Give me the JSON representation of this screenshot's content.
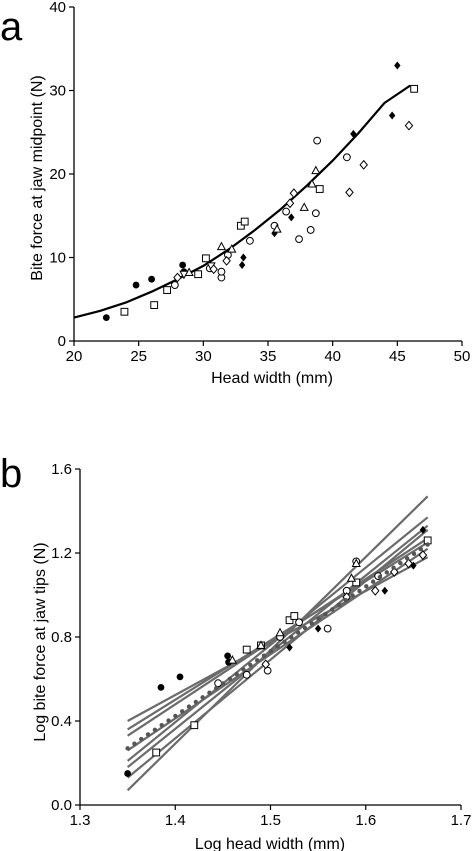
{
  "panels": [
    {
      "letter": "a"
    },
    {
      "letter": "b"
    }
  ],
  "chart_data": [
    {
      "type": "scatter",
      "panel": "a",
      "xlabel": "Head width (mm)",
      "ylabel": "Bite force at jaw midpoint (N)",
      "xlim": [
        20,
        50
      ],
      "ylim": [
        0,
        40
      ],
      "xticks": [
        20,
        25,
        30,
        35,
        40,
        45,
        50
      ],
      "yticks": [
        0,
        10,
        20,
        30,
        40
      ],
      "grid": false,
      "fit_curve": {
        "style": "solid",
        "color": "#000000",
        "x": [
          20,
          22,
          24,
          26,
          28,
          30,
          32,
          34,
          36,
          38,
          40,
          42,
          44,
          46
        ],
        "y": [
          2.8,
          3.6,
          4.6,
          5.9,
          7.4,
          9.0,
          11.0,
          13.3,
          15.8,
          18.6,
          21.6,
          24.9,
          28.5,
          30.6
        ]
      },
      "series": [
        {
          "marker": "filled-circle",
          "points": [
            [
              22.5,
              2.8
            ],
            [
              24.8,
              6.7
            ],
            [
              26.0,
              7.4
            ],
            [
              28.4,
              9.1
            ],
            [
              28.5,
              8.3
            ]
          ]
        },
        {
          "marker": "filled-diamond",
          "points": [
            [
              33.1,
              10.0
            ],
            [
              33.0,
              9.1
            ],
            [
              35.5,
              12.9
            ],
            [
              36.8,
              14.8
            ],
            [
              41.6,
              24.8
            ],
            [
              44.6,
              27.0
            ],
            [
              45.0,
              33.0
            ]
          ]
        },
        {
          "marker": "open-square",
          "points": [
            [
              23.9,
              3.5
            ],
            [
              26.2,
              4.3
            ],
            [
              27.2,
              6.1
            ],
            [
              29.6,
              8.0
            ],
            [
              30.2,
              9.9
            ],
            [
              32.9,
              13.8
            ],
            [
              33.2,
              14.3
            ],
            [
              39.0,
              18.2
            ],
            [
              46.3,
              30.2
            ]
          ]
        },
        {
          "marker": "open-circle",
          "points": [
            [
              27.8,
              6.7
            ],
            [
              30.5,
              8.7
            ],
            [
              31.4,
              7.6
            ],
            [
              31.4,
              8.3
            ],
            [
              31.9,
              10.3
            ],
            [
              33.6,
              12.0
            ],
            [
              35.5,
              13.8
            ],
            [
              36.4,
              15.5
            ],
            [
              37.4,
              12.2
            ],
            [
              38.3,
              13.3
            ],
            [
              38.7,
              15.3
            ],
            [
              38.8,
              24.0
            ],
            [
              41.1,
              22.0
            ]
          ]
        },
        {
          "marker": "open-triangle",
          "points": [
            [
              28.9,
              8.2
            ],
            [
              31.4,
              11.3
            ],
            [
              32.2,
              11.0
            ],
            [
              35.7,
              13.4
            ],
            [
              37.8,
              16.0
            ],
            [
              38.4,
              18.8
            ],
            [
              38.7,
              20.4
            ]
          ]
        },
        {
          "marker": "open-triangle-down",
          "points": [
            [
              28.5,
              8.0
            ],
            [
              30.6,
              9.0
            ]
          ]
        },
        {
          "marker": "open-diamond",
          "points": [
            [
              28.0,
              7.6
            ],
            [
              30.8,
              8.6
            ],
            [
              31.8,
              9.6
            ],
            [
              36.7,
              16.5
            ],
            [
              37.0,
              17.7
            ],
            [
              41.3,
              17.8
            ],
            [
              42.4,
              21.1
            ],
            [
              45.9,
              25.8
            ]
          ]
        }
      ]
    },
    {
      "type": "scatter",
      "panel": "b",
      "xlabel": "Log head width (mm)",
      "ylabel": "Log bite force at jaw tips (N)",
      "xlim": [
        1.3,
        1.7
      ],
      "ylim": [
        0,
        1.6
      ],
      "xticks": [
        1.3,
        1.4,
        1.5,
        1.6,
        1.7
      ],
      "yticks": [
        0,
        0.4,
        0.8,
        1.2,
        1.6
      ],
      "grid": false,
      "regression_lines": [
        {
          "color": "#6b6b6b",
          "x": [
            1.35,
            1.665
          ],
          "y": [
            0.07,
            1.47
          ]
        },
        {
          "color": "#6b6b6b",
          "x": [
            1.35,
            1.665
          ],
          "y": [
            0.21,
            1.37
          ]
        },
        {
          "color": "#6b6b6b",
          "x": [
            1.35,
            1.665
          ],
          "y": [
            0.18,
            1.33
          ]
        },
        {
          "color": "#6b6b6b",
          "x": [
            1.35,
            1.665
          ],
          "y": [
            0.26,
            1.22
          ]
        },
        {
          "color": "#6b6b6b",
          "x": [
            1.35,
            1.665
          ],
          "y": [
            0.33,
            1.27
          ]
        },
        {
          "color": "#6b6b6b",
          "x": [
            1.35,
            1.665
          ],
          "y": [
            0.4,
            1.18
          ]
        },
        {
          "color": "#6b6b6b",
          "x": [
            1.35,
            1.665
          ],
          "y": [
            0.36,
            1.25
          ]
        },
        {
          "color": "#6b6b6b",
          "x": [
            1.35,
            1.665
          ],
          "y": [
            0.13,
            1.31
          ]
        }
      ],
      "dotted_fit": {
        "style": "dotted",
        "color": "#555555",
        "x": [
          1.35,
          1.665
        ],
        "y": [
          0.27,
          1.24
        ]
      },
      "series": [
        {
          "marker": "filled-circle",
          "points": [
            [
              1.35,
              0.15
            ],
            [
              1.385,
              0.56
            ],
            [
              1.405,
              0.61
            ],
            [
              1.455,
              0.71
            ],
            [
              1.456,
              0.68
            ]
          ]
        },
        {
          "marker": "filled-diamond",
          "points": [
            [
              1.52,
              0.75
            ],
            [
              1.55,
              0.84
            ],
            [
              1.62,
              1.02
            ],
            [
              1.65,
              1.14
            ],
            [
              1.66,
              1.31
            ]
          ]
        },
        {
          "marker": "open-square",
          "points": [
            [
              1.38,
              0.25
            ],
            [
              1.42,
              0.38
            ],
            [
              1.475,
              0.74
            ],
            [
              1.49,
              0.76
            ],
            [
              1.52,
              0.88
            ],
            [
              1.525,
              0.9
            ],
            [
              1.59,
              1.06
            ],
            [
              1.665,
              1.26
            ]
          ]
        },
        {
          "marker": "open-circle",
          "points": [
            [
              1.445,
              0.58
            ],
            [
              1.475,
              0.62
            ],
            [
              1.497,
              0.64
            ],
            [
              1.51,
              0.8
            ],
            [
              1.53,
              0.87
            ],
            [
              1.56,
              0.84
            ],
            [
              1.58,
              1.02
            ],
            [
              1.59,
              1.16
            ],
            [
              1.613,
              1.09
            ]
          ]
        },
        {
          "marker": "open-triangle",
          "points": [
            [
              1.46,
              0.69
            ],
            [
              1.49,
              0.76
            ],
            [
              1.51,
              0.82
            ],
            [
              1.585,
              1.08
            ],
            [
              1.59,
              1.15
            ]
          ]
        },
        {
          "marker": "open-diamond",
          "points": [
            [
              1.495,
              0.67
            ],
            [
              1.58,
              0.99
            ],
            [
              1.61,
              1.02
            ],
            [
              1.63,
              1.11
            ],
            [
              1.645,
              1.15
            ],
            [
              1.66,
              1.19
            ]
          ]
        }
      ]
    }
  ]
}
